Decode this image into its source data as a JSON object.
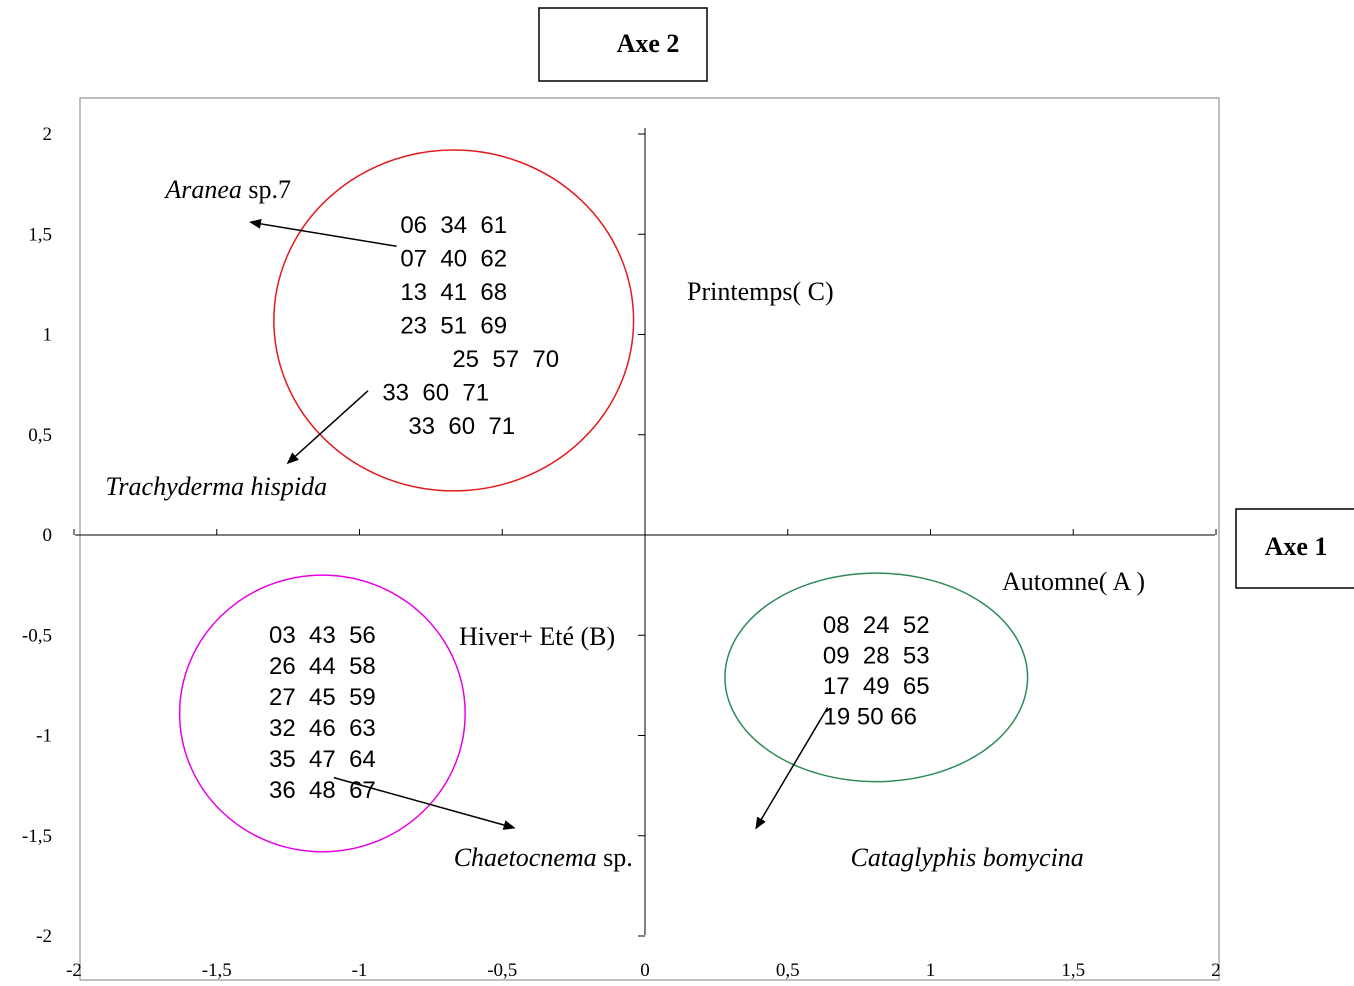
{
  "chart_data": {
    "type": "scatter",
    "title": "",
    "xlabel": "Axe 1",
    "ylabel": "Axe 2",
    "xlim": [
      -2,
      2
    ],
    "ylim": [
      -2,
      2
    ],
    "x_ticks": [
      "-2",
      "-1,5",
      "-1",
      "-0,5",
      "0",
      "0,5",
      "1",
      "1,5",
      "2"
    ],
    "y_ticks": [
      "2",
      "1,5",
      "1",
      "0,5",
      "0",
      "-0,5",
      "-1",
      "-1,5",
      "-2"
    ],
    "grid": false,
    "groups": [
      {
        "label": "Printemps( C)",
        "color": "#e31a1c",
        "center": [
          -0.67,
          1.07
        ],
        "radius_x": 0.63,
        "radius_y": 0.85,
        "items": [
          "06  34  61",
          "07  40  62",
          "13  41  68",
          "23  51  69",
          "25  57  70",
          "33  60  71",
          "33  60  71"
        ]
      },
      {
        "label": "Hiver+ Eté (B)",
        "color": "#e600e6",
        "center": [
          -1.13,
          -0.89
        ],
        "radius_x": 0.5,
        "radius_y": 0.69,
        "items": [
          "03  43  56",
          "26  44  58",
          "27  45  59",
          "32  46  63",
          "35  47  64",
          "36  48  67"
        ]
      },
      {
        "label": "Automne( A )",
        "color": "#2e8b57",
        "center": [
          0.81,
          -0.71
        ],
        "radius_x": 0.53,
        "radius_y": 0.52,
        "items": [
          "08  24  52",
          "09  28  53",
          "17  49  65",
          "19 50 66"
        ]
      }
    ],
    "species": [
      {
        "italic": "Aranea",
        "plain": " sp.7",
        "from": [
          -0.87,
          1.44
        ],
        "to": [
          -1.38,
          1.56
        ],
        "at": [
          -1.68,
          1.68
        ]
      },
      {
        "italic": "Trachyderma hispida",
        "plain": "",
        "from": [
          -0.97,
          0.72
        ],
        "to": [
          -1.25,
          0.36
        ],
        "at": [
          -1.89,
          0.2
        ]
      },
      {
        "italic": "Chaetocnema",
        "plain": " sp.",
        "from": [
          -1.09,
          -1.21
        ],
        "to": [
          -0.46,
          -1.46
        ],
        "at": [
          -0.67,
          -1.65
        ]
      },
      {
        "italic": "Cataglyphis bomycina",
        "plain": "",
        "from": [
          0.64,
          -0.86
        ],
        "to": [
          0.39,
          -1.46
        ],
        "at": [
          0.72,
          -1.65
        ]
      }
    ]
  }
}
